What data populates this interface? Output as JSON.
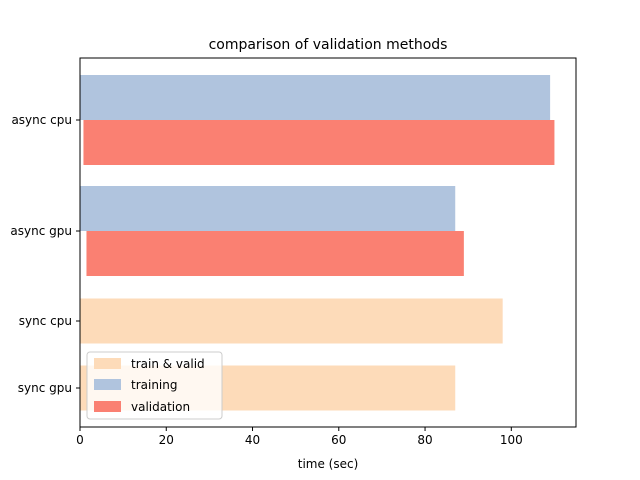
{
  "chart_data": {
    "type": "bar",
    "orientation": "horizontal",
    "title": "comparison of validation methods",
    "xlabel": "time (sec)",
    "ylabel": "",
    "xlim": [
      0,
      115
    ],
    "xticks": [
      0,
      20,
      40,
      60,
      80,
      100
    ],
    "categories": [
      "async cpu",
      "async gpu",
      "sync cpu",
      "sync gpu"
    ],
    "grid": false,
    "legend_position": "lower-left",
    "legend": [
      {
        "key": "train_valid",
        "label": "train & valid",
        "color": "#FDDBB9"
      },
      {
        "key": "training",
        "label": "training",
        "color": "#B0C4DE"
      },
      {
        "key": "validation",
        "label": "validation",
        "color": "#FA8072"
      }
    ],
    "bars": [
      {
        "category": "async cpu",
        "series": "training",
        "start": 0,
        "end": 109
      },
      {
        "category": "async cpu",
        "series": "validation",
        "start": 0.8,
        "end": 110
      },
      {
        "category": "async gpu",
        "series": "training",
        "start": 0,
        "end": 87
      },
      {
        "category": "async gpu",
        "series": "validation",
        "start": 1.5,
        "end": 89
      },
      {
        "category": "sync cpu",
        "series": "train_valid",
        "start": 0,
        "end": 98
      },
      {
        "category": "sync gpu",
        "series": "train_valid",
        "start": 0,
        "end": 87
      }
    ]
  }
}
